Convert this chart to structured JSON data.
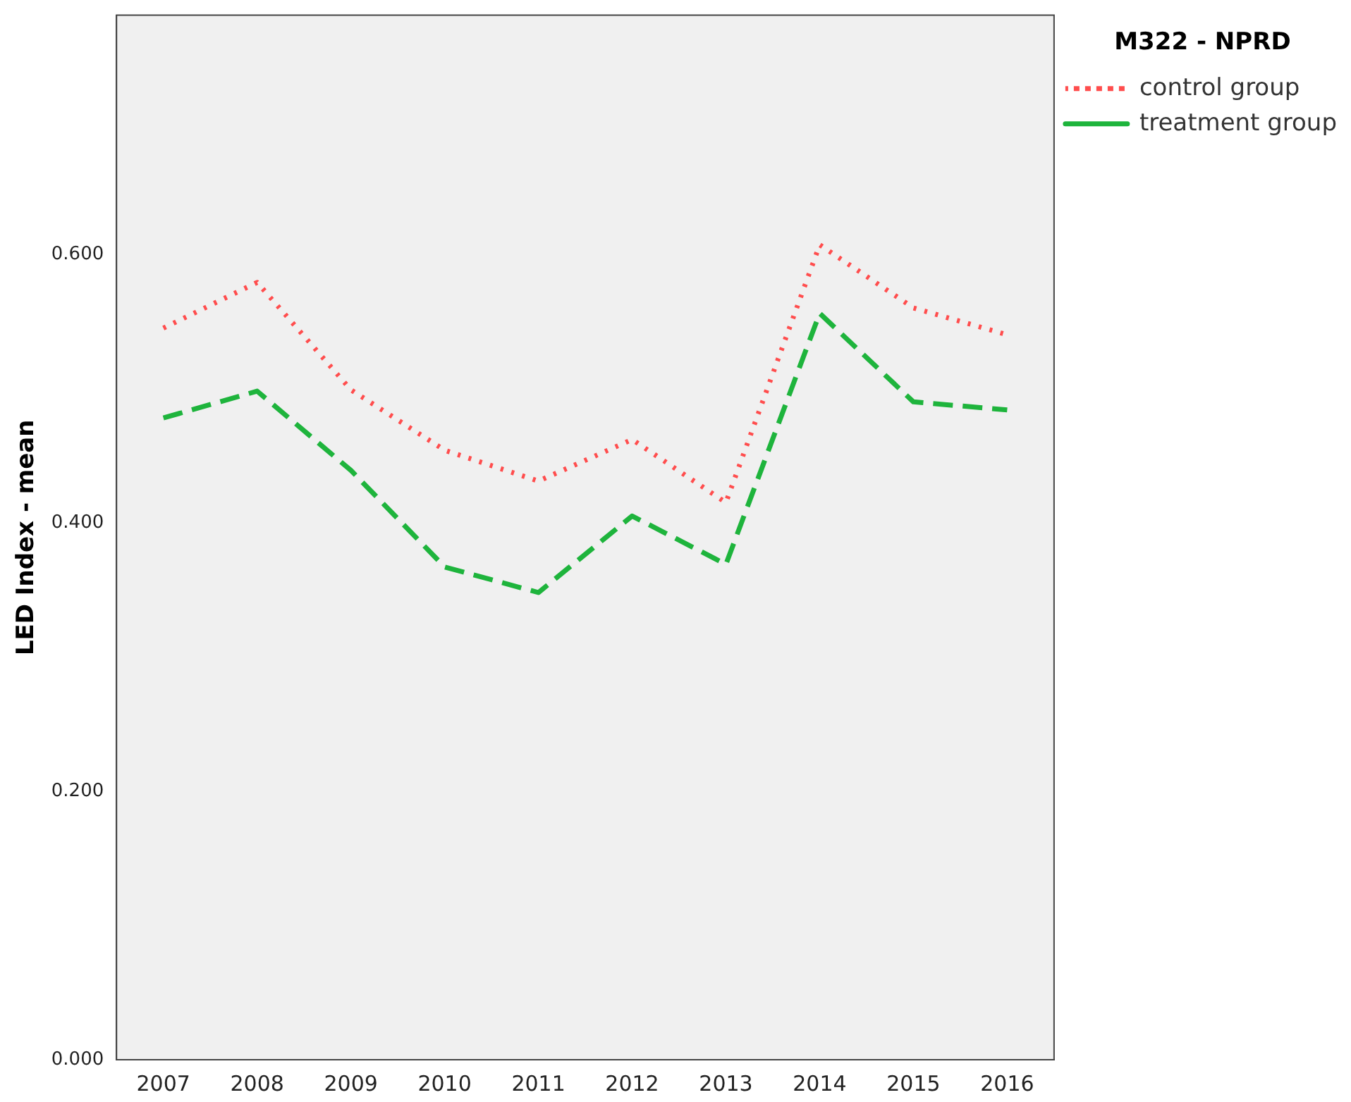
{
  "chart_data": {
    "type": "line",
    "ylabel": "LED Index - mean",
    "legend_title": "M322 - NPRD",
    "legend": "top right",
    "grid": false,
    "marker": "none",
    "categories": [
      "2007",
      "2008",
      "2009",
      "2010",
      "2011",
      "2012",
      "2013",
      "2014",
      "2015",
      "2016"
    ],
    "ylim": [
      0,
      0.778
    ],
    "yticks": [
      {
        "value": 0,
        "label": "0.000"
      },
      {
        "value": 0.2,
        "label": "0.200"
      },
      {
        "value": 0.4,
        "label": "0.400"
      },
      {
        "value": 0.6,
        "label": "0.600"
      }
    ],
    "series": [
      {
        "name": "control group",
        "color": "#ff4d4d",
        "line_style": "dotted",
        "values": [
          0.545,
          0.579,
          0.499,
          0.454,
          0.431,
          0.462,
          0.415,
          0.607,
          0.56,
          0.54
        ]
      },
      {
        "name": "treatment group",
        "color": "#1eb43c",
        "line_style": "dashed",
        "values": [
          0.478,
          0.498,
          0.439,
          0.367,
          0.348,
          0.405,
          0.369,
          0.556,
          0.49,
          0.484
        ]
      }
    ]
  }
}
